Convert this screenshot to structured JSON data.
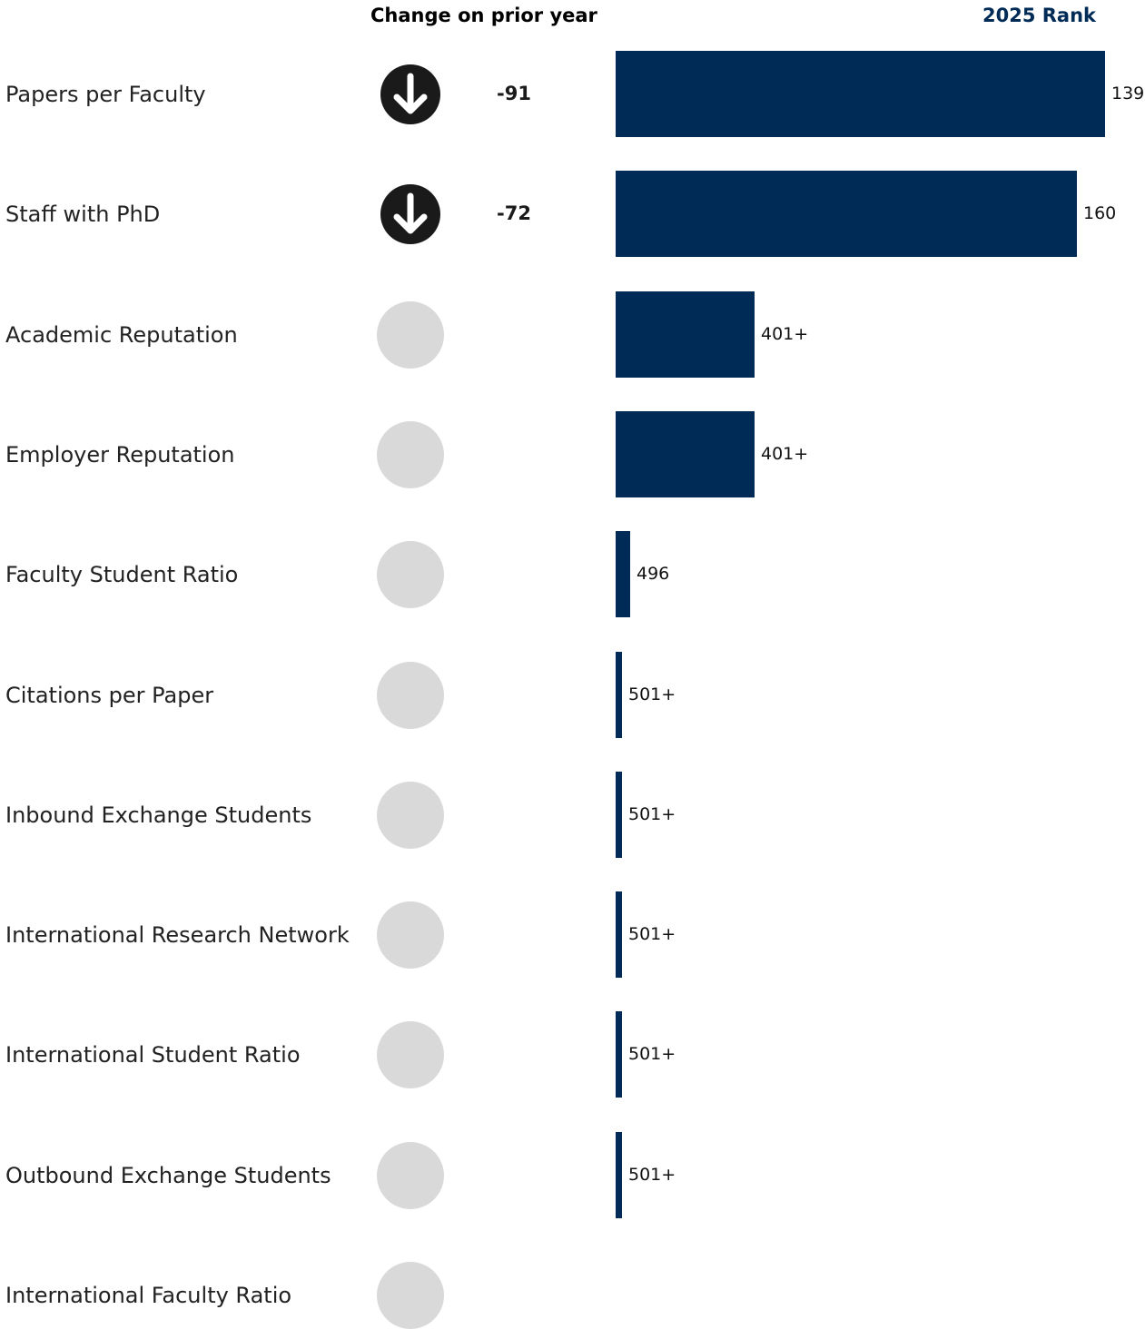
{
  "header": {
    "change_title": "Change on prior year",
    "rank_title": "2025 Rank"
  },
  "colors": {
    "bar": "#002b57",
    "neutral_circle": "#d9d9d9",
    "down_icon": "#1a1a1a",
    "rank_header": "#002b57"
  },
  "chart_data": {
    "type": "bar",
    "orientation": "horizontal",
    "title": "",
    "change_header": "Change on prior year",
    "value_header": "2025 Rank",
    "categories": [
      "Papers per Faculty",
      "Staff with PhD",
      "Academic Reputation",
      "Employer Reputation",
      "Faculty Student Ratio",
      "Citations per Paper",
      "Inbound Exchange Students",
      "International Research Network",
      "International Student Ratio",
      "Outbound Exchange Students",
      "International Faculty Ratio"
    ],
    "rank_labels": [
      "139",
      "160",
      "401+",
      "401+",
      "496",
      "501+",
      "501+",
      "501+",
      "501+",
      "501+",
      ""
    ],
    "bar_score": [
      0.9,
      0.848,
      0.256,
      0.256,
      0.026,
      0.0,
      0.0,
      0.0,
      0.0,
      0.0,
      null
    ],
    "change": [
      "-91",
      "-72",
      "",
      "",
      "",
      "",
      "",
      "",
      "",
      "",
      ""
    ],
    "change_direction": [
      "down",
      "down",
      "none",
      "none",
      "none",
      "none",
      "none",
      "none",
      "none",
      "none",
      "none"
    ],
    "icons": {
      "down": "arrow-down-circle-icon",
      "none": "neutral-circle-icon"
    }
  }
}
